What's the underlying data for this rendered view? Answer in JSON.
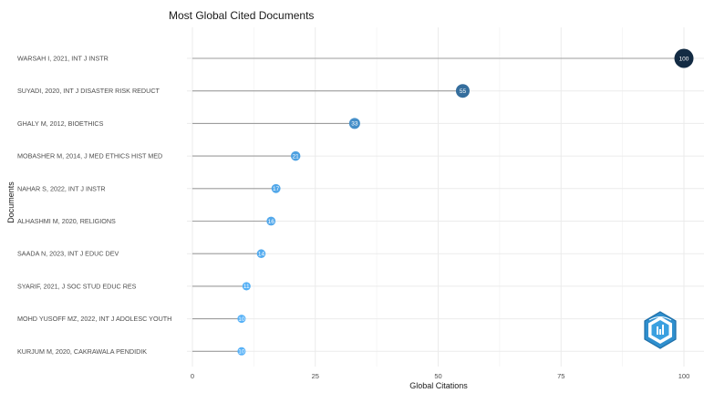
{
  "chart_data": {
    "type": "lollipop",
    "title": "Most Global Cited Documents",
    "xlabel": "Global Citations",
    "ylabel": "Documents",
    "xlim": [
      0,
      100
    ],
    "xticks": [
      0,
      25,
      50,
      75,
      100
    ],
    "categories": [
      "WARSAH I, 2021, INT J INSTR",
      "SUYADI, 2020, INT J DISASTER RISK REDUCT",
      "GHALY M, 2012, BIOETHICS",
      "MOBASHER M, 2014, J MED ETHICS HIST MED",
      "NAHAR S, 2022, INT J INSTR",
      "ALHASHMI M, 2020, RELIGIONS",
      "SAADA N, 2023, INT J EDUC DEV",
      "SYARIF, 2021, J SOC STUD EDUC RES",
      "MOHD YUSOFF MZ, 2022, INT J ADOLESC YOUTH",
      "KURJUM M, 2020, CAKRAWALA PENDIDIK"
    ],
    "values": [
      100,
      55,
      33,
      21,
      17,
      16,
      14,
      11,
      10,
      10
    ],
    "grid": true,
    "colors": {
      "low": "#56B1F7",
      "high": "#132B43",
      "stem": "#9e9e9e",
      "grid": "#ebebeb"
    }
  },
  "logo": {
    "name": "bibliometrix-logo-icon"
  }
}
